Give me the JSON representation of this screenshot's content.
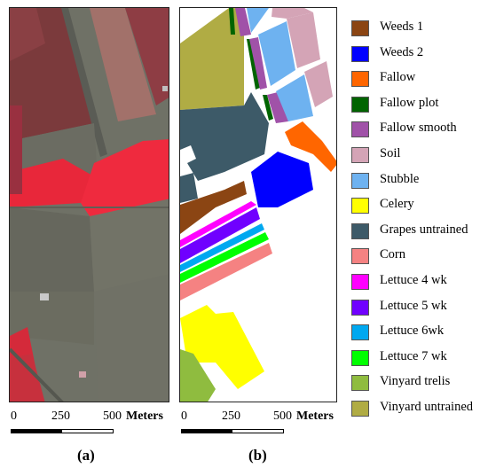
{
  "panel_a": {
    "caption": "(a)",
    "scale": {
      "ticks": [
        "0",
        "250",
        "500"
      ],
      "unit": "Meters"
    }
  },
  "panel_b": {
    "caption": "(b)",
    "scale": {
      "ticks": [
        "0",
        "250",
        "500"
      ],
      "unit": "Meters"
    }
  },
  "legend": [
    {
      "label": "Weeds 1",
      "color": "#8b4513"
    },
    {
      "label": "Weeds 2",
      "color": "#0000ff"
    },
    {
      "label": "Fallow",
      "color": "#ff6600"
    },
    {
      "label": "Fallow plot",
      "color": "#006400"
    },
    {
      "label": "Fallow smooth",
      "color": "#a052a8"
    },
    {
      "label": "Soil",
      "color": "#d4a4b6"
    },
    {
      "label": "Stubble",
      "color": "#6eb2f0"
    },
    {
      "label": "Celery",
      "color": "#ffff00"
    },
    {
      "label": "Grapes untrained",
      "color": "#3d5a68"
    },
    {
      "label": "Corn",
      "color": "#f58282"
    },
    {
      "label": "Lettuce 4 wk",
      "color": "#ff00ff"
    },
    {
      "label": "Lettuce 5 wk",
      "color": "#7000ff"
    },
    {
      "label": "Lettuce 6wk",
      "color": "#00a8f0"
    },
    {
      "label": "Lettuce 7 wk",
      "color": "#00ff00"
    },
    {
      "label": "Vinyard trelis",
      "color": "#8fbc3f"
    },
    {
      "label": "Vinyard untrained",
      "color": "#b0ac44"
    }
  ]
}
